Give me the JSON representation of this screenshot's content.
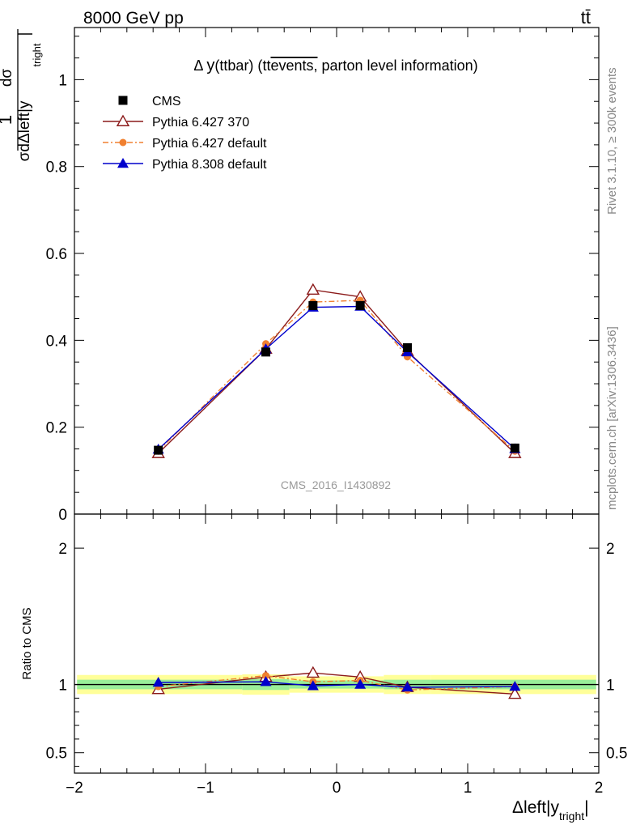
{
  "header": {
    "energy_label": "8000 GeV pp",
    "process_label": "tt̄",
    "analysis_id": "CMS_2016_I1430892"
  },
  "side_text": {
    "rivet": "Rivet 3.1.10, ≥ 300k events",
    "mcplots": "mcplots.cern.ch [arXiv:1306.3436]"
  },
  "chart_data": [
    {
      "type": "line",
      "title": "Δ y(ttbar) (tt̄events, parton level information)",
      "title_parts": {
        "delta": "Δ",
        "y": "y",
        "rest": "(ttbar) (",
        "ttbar": "tt",
        "events": "events,",
        "tail": " parton level information)"
      },
      "ylabel": "1/σ dσ/dΔleft|y_tright|",
      "ylabel_parts": {
        "one": "1",
        "dsigma": "dσ",
        "sigma_d": "σdΔleft|y",
        "sub": "tright",
        "bar": "|"
      },
      "xlim": [
        -2,
        2
      ],
      "ylim": [
        0,
        1.12
      ],
      "y_ticks": [
        0,
        0.2,
        0.4,
        0.6,
        0.8,
        1
      ],
      "y_tick_labels": [
        "0",
        "0.2",
        "0.4",
        "0.6",
        "0.8",
        "1"
      ],
      "x": [
        -1.36,
        -0.54,
        -0.18,
        0.18,
        0.54,
        1.36
      ],
      "x_edges": [
        -1.98,
        -0.72,
        -0.36,
        0.0,
        0.36,
        0.72,
        1.98
      ],
      "series": [
        {
          "name": "CMS",
          "color": "#000000",
          "marker": "square",
          "line": "none",
          "values": [
            0.147,
            0.373,
            0.48,
            0.48,
            0.383,
            0.152
          ]
        },
        {
          "name": "Pythia 6.427 370",
          "color": "#8b1a1a",
          "marker": "open-triangle",
          "line": "solid",
          "values": [
            0.14,
            0.38,
            0.516,
            0.5,
            0.375,
            0.14
          ]
        },
        {
          "name": "Pythia 6.427 default",
          "color": "#f08030",
          "marker": "circle",
          "line": "dashdot",
          "values": [
            0.145,
            0.392,
            0.488,
            0.492,
            0.362,
            0.145
          ]
        },
        {
          "name": "Pythia 8.308 default",
          "color": "#0000cc",
          "marker": "triangle",
          "line": "solid",
          "values": [
            0.149,
            0.38,
            0.476,
            0.478,
            0.373,
            0.15
          ]
        }
      ],
      "legend_position": "top-left"
    },
    {
      "type": "line",
      "ylabel": "Ratio to CMS",
      "xlabel": "Δleft|y_tright|",
      "xlabel_parts": {
        "main": "Δleft|y",
        "sub": "tright",
        "bar": "|"
      },
      "xlim": [
        -2,
        2
      ],
      "ylim": [
        0.35,
        2.25
      ],
      "x_ticks": [
        -2,
        -1,
        0,
        1,
        2
      ],
      "x_tick_labels": [
        "−2",
        "−1",
        "0",
        "1",
        "2"
      ],
      "y_ticks": [
        0.5,
        1,
        2
      ],
      "y_tick_labels": [
        "0.5",
        "1",
        "2"
      ],
      "x": [
        -1.36,
        -0.54,
        -0.18,
        0.18,
        0.54,
        1.36
      ],
      "x_edges": [
        -1.98,
        -0.72,
        -0.36,
        0.0,
        0.36,
        0.72,
        1.98
      ],
      "band_total": [
        0.07,
        0.075,
        0.06,
        0.06,
        0.07,
        0.07
      ],
      "band_stat": [
        0.035,
        0.04,
        0.03,
        0.03,
        0.035,
        0.035
      ],
      "series": [
        {
          "name": "Pythia 6.427 370",
          "color": "#8b1a1a",
          "marker": "open-triangle",
          "line": "solid",
          "values": [
            0.965,
            1.055,
            1.085,
            1.055,
            0.98,
            0.93
          ]
        },
        {
          "name": "Pythia 6.427 default",
          "color": "#f08030",
          "marker": "circle",
          "line": "dashdot",
          "values": [
            0.985,
            1.065,
            1.02,
            1.03,
            0.96,
            0.985
          ]
        },
        {
          "name": "Pythia 8.308 default",
          "color": "#0000cc",
          "marker": "triangle",
          "line": "solid",
          "values": [
            1.015,
            1.02,
            0.99,
            1.0,
            0.98,
            0.985
          ]
        }
      ]
    }
  ]
}
